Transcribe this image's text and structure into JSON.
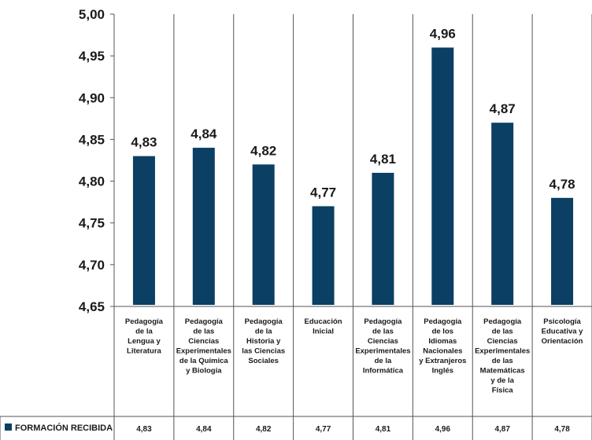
{
  "chart_data": {
    "type": "bar",
    "categories": [
      "Pedagogía de la Lengua y Literatura",
      "Pedagogía de las Ciencias Experimentales de la Química y Biología",
      "Pedagogía de la Historia y las Ciencias Sociales",
      "Educación Inicial",
      "Pedagogía de las Ciencias Experimentales de la Informática",
      "Pedagogía de los Idiomas Nacionales y Extranjeros Inglés",
      "Pedagogía de las Ciencias Experimentales de las Matemáticas y de la Física",
      "Psicología Educativa y Orientación"
    ],
    "category_lines": [
      [
        "Pedagogía",
        "de la",
        "Lengua y",
        "Literatura"
      ],
      [
        "Pedagogía",
        "de las",
        "Ciencias",
        "Experimentales",
        "de la Química",
        "y Biología"
      ],
      [
        "Pedagogía",
        "de la",
        "Historia y",
        "las Ciencias",
        "Sociales"
      ],
      [
        "Educación",
        "Inicial"
      ],
      [
        "Pedagogía",
        "de las",
        "Ciencias",
        "Experimentales",
        "de la",
        "Informática"
      ],
      [
        "Pedagogía",
        "de los",
        "Idiomas",
        "Nacionales",
        "y Extranjeros",
        "Inglés"
      ],
      [
        "Pedagogía",
        "de las",
        "Ciencias",
        "Experimentales",
        "de las",
        "Matemáticas",
        "y de la",
        "Física"
      ],
      [
        "Psicología",
        "Educativa y",
        "Orientación"
      ]
    ],
    "series": [
      {
        "name": "FORMACIÓN RECIBIDA",
        "values": [
          4.83,
          4.84,
          4.82,
          4.77,
          4.81,
          4.96,
          4.87,
          4.78
        ],
        "labels": [
          "4,83",
          "4,84",
          "4,82",
          "4,77",
          "4,81",
          "4,96",
          "4,87",
          "4,78"
        ],
        "color": "#0b3f63"
      }
    ],
    "ylim": [
      4.65,
      5.0
    ],
    "yticks": [
      4.65,
      4.7,
      4.75,
      4.8,
      4.85,
      4.9,
      4.95,
      5.0
    ],
    "ytick_labels": [
      "4,65",
      "4,70",
      "4,75",
      "4,80",
      "4,85",
      "4,90",
      "4,95",
      "5,00"
    ],
    "title": "",
    "xlabel": "",
    "ylabel": "",
    "grid": "vertical category separators",
    "legend": "bottom-left data table"
  }
}
